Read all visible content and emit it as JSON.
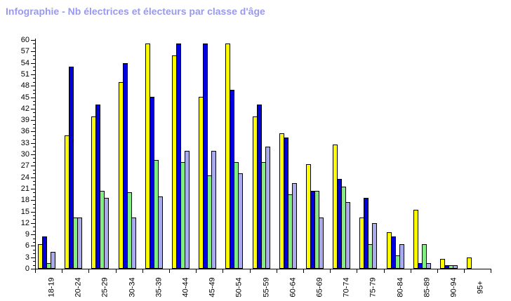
{
  "title": {
    "text": "Infographie - Nb électrices et électeurs par classe d'âge",
    "color": "#9999EE"
  },
  "axis_color": "#000000",
  "background_color": "#FFFFFF",
  "chart_data": {
    "type": "bar",
    "title": "Infographie - Nb électrices et électeurs par classe d'âge",
    "xlabel": "",
    "ylabel": "",
    "ylim": [
      0,
      60
    ],
    "y_major_step": 3,
    "y_minor_step": 1,
    "grid": false,
    "legend_position": "none",
    "x_tick_labels_rotation_deg": -90,
    "categories": [
      "18-19",
      "20-24",
      "25-29",
      "30-34",
      "35-39",
      "40-44",
      "45-49",
      "50-54",
      "55-59",
      "60-64",
      "65-69",
      "70-74",
      "75-79",
      "80-84",
      "85-89",
      "90-94",
      "95+"
    ],
    "y_axis_tick_labels": [
      "0",
      "3",
      "6",
      "9",
      "12",
      "15",
      "18",
      "21",
      "24",
      "27",
      "30",
      "33",
      "36",
      "39",
      "42",
      "45",
      "48",
      "51",
      "54",
      "57",
      "60"
    ],
    "series": [
      {
        "name": "series-1-yellow",
        "color": "#FFFF00",
        "values": [
          6.5,
          35,
          40,
          49,
          59,
          56,
          45,
          59,
          40,
          35.5,
          27.5,
          32.5,
          13.5,
          9.5,
          15.5,
          2.5,
          3
        ]
      },
      {
        "name": "series-2-blue",
        "color": "#0000E0",
        "values": [
          8.5,
          53,
          43,
          54,
          45,
          59,
          59,
          47,
          43,
          34.5,
          20.5,
          23.5,
          18.5,
          8.5,
          1.5,
          1,
          0
        ]
      },
      {
        "name": "series-3-green",
        "color": "#80EE80",
        "values": [
          1.5,
          13.5,
          20.5,
          20,
          28.5,
          28,
          24.5,
          28,
          28,
          19.5,
          20.5,
          21.5,
          6.5,
          3.5,
          6.5,
          1,
          0
        ]
      },
      {
        "name": "series-4-lavender",
        "color": "#AAAAEE",
        "values": [
          4.5,
          13.5,
          18.5,
          13.5,
          19,
          31,
          31,
          25,
          32,
          22.5,
          13.5,
          17.5,
          12,
          6.5,
          1.5,
          1,
          0
        ]
      }
    ]
  }
}
